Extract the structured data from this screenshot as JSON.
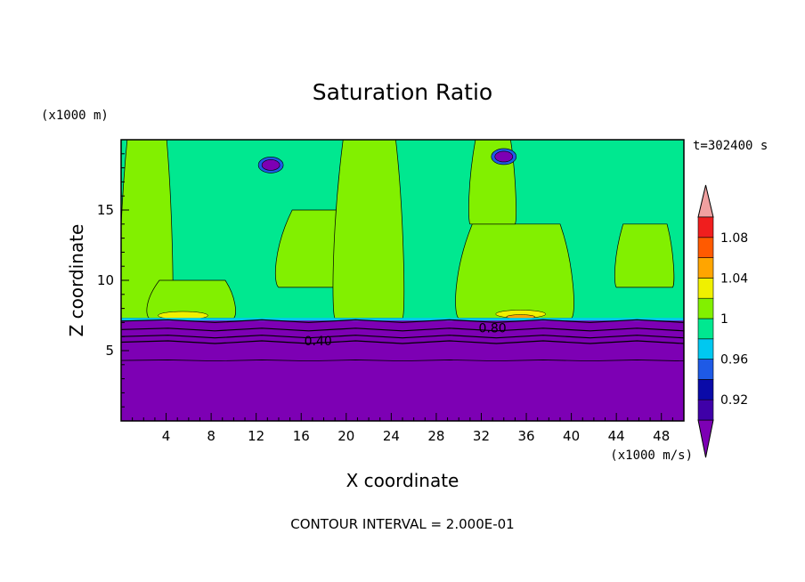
{
  "chart_data": {
    "type": "heatmap",
    "title": "Saturation Ratio",
    "xlabel": "X coordinate",
    "ylabel": "Z coordinate",
    "x_unit": "(x1000 m/s)",
    "y_unit": "(x1000 m)",
    "time_label": "t=302400 s",
    "footer": "CONTOUR INTERVAL = 2.000E-01",
    "xlim": [
      0,
      50
    ],
    "ylim": [
      0,
      20
    ],
    "x_ticks": [
      4,
      8,
      12,
      16,
      20,
      24,
      28,
      32,
      36,
      40,
      44,
      48
    ],
    "y_ticks": [
      5,
      10,
      15
    ],
    "contour_labels": [
      {
        "text": "0.40",
        "x": 17.5,
        "y": 5.7
      },
      {
        "text": "0.80",
        "x": 33.0,
        "y": 6.6
      }
    ],
    "colorbar": {
      "levels": [
        0.9,
        0.92,
        0.94,
        0.96,
        0.98,
        1.0,
        1.02,
        1.04,
        1.06,
        1.08,
        1.1
      ],
      "labels": [
        "0.92",
        "0.96",
        "1",
        "1.04",
        "1.08"
      ],
      "colors": [
        "#3f00a8",
        "#0a0aa8",
        "#1e5ae6",
        "#00c8f0",
        "#00e890",
        "#82f000",
        "#f0f000",
        "#ffa500",
        "#ff5a00",
        "#f01e1e"
      ],
      "under_color": "#7d00b4",
      "over_color": "#f0a0a0"
    },
    "regions": {
      "dry_layer_top": 7.2,
      "moist_colors": {
        "low": "#00e890",
        "mid": "#82f000",
        "high": "#f0f000",
        "peak": "#ffa500"
      },
      "moist_bands": [
        {
          "x0": 0,
          "x1": 4.5,
          "z_bottom": 7.3,
          "z_top": 20,
          "level": "mid"
        },
        {
          "x0": 2.5,
          "x1": 10,
          "z_bottom": 7.3,
          "z_top": 10,
          "level": "mid"
        },
        {
          "x0": 14,
          "x1": 24,
          "z_bottom": 9.5,
          "z_top": 15,
          "level": "mid"
        },
        {
          "x0": 19,
          "x1": 25,
          "z_bottom": 7.3,
          "z_top": 20,
          "level": "mid"
        },
        {
          "x0": 30,
          "x1": 40,
          "z_bottom": 7.3,
          "z_top": 14,
          "level": "mid"
        },
        {
          "x0": 31,
          "x1": 35,
          "z_bottom": 14,
          "z_top": 20,
          "level": "mid"
        },
        {
          "x0": 44,
          "x1": 49,
          "z_bottom": 9.5,
          "z_top": 14,
          "level": "mid"
        }
      ],
      "warm_spots": [
        {
          "x": 5.5,
          "z": 7.5,
          "level": "high"
        },
        {
          "x": 35.5,
          "z": 7.6,
          "level": "high"
        },
        {
          "x": 35.5,
          "z": 7.4,
          "level": "peak"
        }
      ],
      "dry_patches": [
        {
          "x": 13.3,
          "z": 18.2
        },
        {
          "x": 34.0,
          "z": 18.8
        }
      ]
    }
  }
}
